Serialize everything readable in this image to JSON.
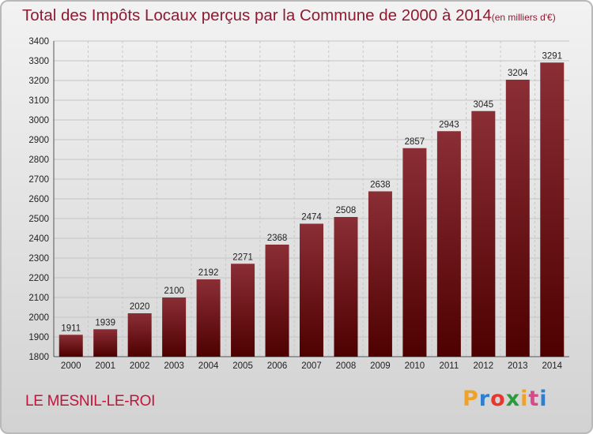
{
  "header": {
    "title": "Total des Impôts Locaux perçus par la Commune de 2000 à 2014",
    "unit": "(en milliers d'€)"
  },
  "footer": {
    "commune": "LE MESNIL-LE-ROI",
    "logo_letters": [
      "P",
      "r",
      "o",
      "x",
      "i",
      "t",
      "i"
    ],
    "logo_colors": [
      "#f0a12a",
      "#2f7fd1",
      "#e8352d",
      "#2a9b3c",
      "#f0a12a",
      "#d64b8c",
      "#2f7fd1"
    ]
  },
  "chart_data": {
    "type": "bar",
    "title": "Total des Impôts Locaux perçus par la Commune de 2000 à 2014",
    "ylabel": "en milliers d'€",
    "xlabel": "",
    "categories": [
      "2000",
      "2001",
      "2002",
      "2003",
      "2004",
      "2005",
      "2006",
      "2007",
      "2008",
      "2009",
      "2010",
      "2011",
      "2012",
      "2013",
      "2014"
    ],
    "values": [
      1911,
      1939,
      2020,
      2100,
      2192,
      2271,
      2368,
      2474,
      2508,
      2638,
      2857,
      2943,
      3045,
      3204,
      3291
    ],
    "ylim": [
      1800,
      3400
    ],
    "yticks": [
      1800,
      1900,
      2000,
      2100,
      2200,
      2300,
      2400,
      2500,
      2600,
      2700,
      2800,
      2900,
      3000,
      3100,
      3200,
      3300,
      3400
    ],
    "grid": true,
    "bar_color_top": "#8b2e36",
    "bar_color_bottom": "#4e0000"
  }
}
